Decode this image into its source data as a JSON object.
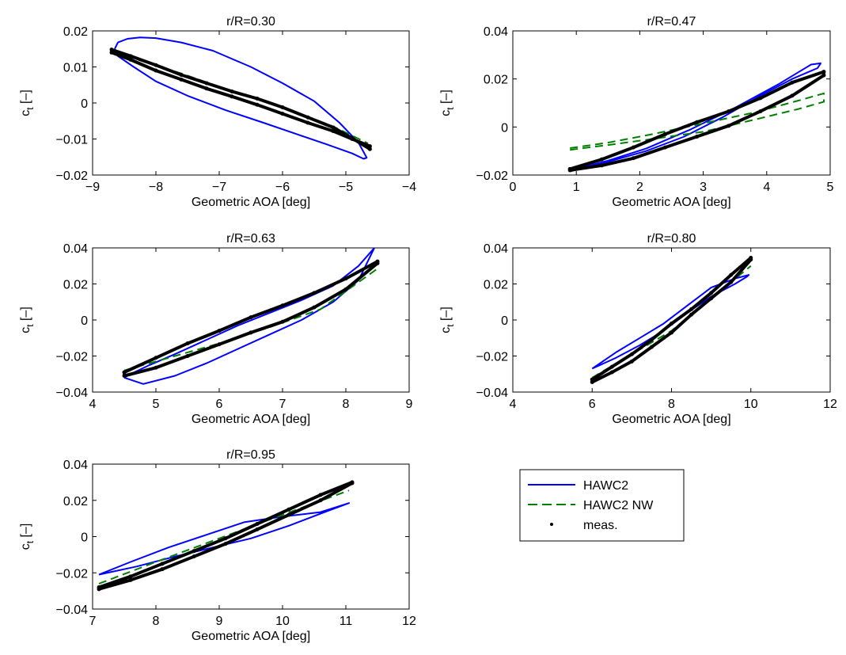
{
  "chart_data": [
    {
      "type": "line",
      "title": "r/R=0.30",
      "xlabel": "Geometric AOA [deg]",
      "ylabel_main": "c",
      "ylabel_sub": "t",
      "ylabel_unit": "[–]",
      "xlim": [
        -9,
        -4
      ],
      "ylim": [
        -0.02,
        0.02
      ],
      "xticks": [
        -9,
        -8,
        -7,
        -6,
        -5,
        -4
      ],
      "xtick_labels": [
        "−9",
        "−8",
        "−7",
        "−6",
        "−5",
        "−4"
      ],
      "yticks": [
        -0.02,
        -0.01,
        0,
        0.01,
        0.02
      ],
      "ytick_labels": [
        "−0.02",
        "−0.01",
        "0",
        "0.01",
        "0.02"
      ],
      "grid": false,
      "series": [
        {
          "name": "HAWC2",
          "style": "solid",
          "color": "#0000ff",
          "x": [
            -8.65,
            -8.6,
            -8.45,
            -8.25,
            -8.0,
            -7.6,
            -7.1,
            -6.5,
            -6.0,
            -5.5,
            -5.1,
            -4.8,
            -4.67,
            -4.72,
            -4.9,
            -5.3,
            -5.8,
            -6.3,
            -6.9,
            -7.5,
            -8.0,
            -8.35,
            -8.6,
            -8.65
          ],
          "y": [
            0.015,
            0.0168,
            0.0178,
            0.0182,
            0.018,
            0.0168,
            0.0145,
            0.01,
            0.0055,
            0.0005,
            -0.0055,
            -0.011,
            -0.0152,
            -0.0155,
            -0.014,
            -0.0115,
            -0.0085,
            -0.0055,
            -0.002,
            0.002,
            0.006,
            0.01,
            0.013,
            0.015
          ]
        },
        {
          "name": "HAWC2 NW",
          "style": "dashed",
          "color": "#008000",
          "x": [
            -8.65,
            -8.2,
            -7.6,
            -7.0,
            -6.4,
            -5.8,
            -5.2,
            -4.65
          ],
          "y": [
            0.0142,
            0.0115,
            0.0082,
            0.0045,
            0.0012,
            -0.0025,
            -0.0065,
            -0.0112
          ]
        },
        {
          "name": "meas.",
          "style": "markers",
          "color": "#000000",
          "x": [
            -8.7,
            -8.4,
            -8.0,
            -7.6,
            -7.2,
            -6.8,
            -6.4,
            -6.0,
            -5.6,
            -5.2,
            -4.9,
            -4.62,
            -4.62,
            -4.9,
            -5.2,
            -5.6,
            -6.0,
            -6.4,
            -6.8,
            -7.2,
            -7.6,
            -8.0,
            -8.4,
            -8.7
          ],
          "y": [
            0.0148,
            0.013,
            0.0105,
            0.0078,
            0.0055,
            0.0032,
            0.0012,
            -0.0012,
            -0.004,
            -0.0068,
            -0.0098,
            -0.0128,
            -0.012,
            -0.01,
            -0.0078,
            -0.0055,
            -0.003,
            -0.0005,
            0.0018,
            0.004,
            0.0065,
            0.009,
            0.012,
            0.014
          ]
        }
      ]
    },
    {
      "type": "line",
      "title": "r/R=0.47",
      "xlabel": "Geometric AOA [deg]",
      "ylabel_main": "c",
      "ylabel_sub": "t",
      "ylabel_unit": "[–]",
      "xlim": [
        0,
        5
      ],
      "ylim": [
        -0.02,
        0.04
      ],
      "xticks": [
        0,
        1,
        2,
        3,
        4,
        5
      ],
      "xtick_labels": [
        "0",
        "1",
        "2",
        "3",
        "4",
        "5"
      ],
      "yticks": [
        -0.02,
        0,
        0.02,
        0.04
      ],
      "ytick_labels": [
        "−0.02",
        "0",
        "0.02",
        "0.04"
      ],
      "grid": false,
      "series": [
        {
          "name": "HAWC2",
          "style": "solid",
          "color": "#0000ff",
          "x": [
            0.9,
            1.5,
            2.1,
            2.7,
            3.3,
            3.9,
            4.4,
            4.8,
            4.85,
            4.7,
            4.2,
            3.5,
            2.8,
            2.1,
            1.5,
            1.0,
            0.9
          ],
          "y": [
            -0.0185,
            -0.0145,
            -0.01,
            -0.004,
            0.004,
            0.013,
            0.02,
            0.0245,
            0.0265,
            0.026,
            0.018,
            0.008,
            -0.001,
            -0.009,
            -0.014,
            -0.0175,
            -0.0185
          ]
        },
        {
          "name": "HAWC2 NW",
          "style": "dashed",
          "color": "#008000",
          "x": [
            0.9,
            1.5,
            2.2,
            3.0,
            3.8,
            4.5,
            4.9,
            4.9,
            4.5,
            3.8,
            3.0,
            2.2,
            1.5,
            0.9
          ],
          "y": [
            -0.0095,
            -0.0075,
            -0.005,
            -0.002,
            0.003,
            0.0075,
            0.0105,
            0.014,
            0.011,
            0.006,
            0.0015,
            -0.003,
            -0.0065,
            -0.0088
          ]
        },
        {
          "name": "meas.",
          "style": "markers",
          "color": "#000000",
          "x": [
            0.9,
            1.4,
            1.9,
            2.4,
            2.9,
            3.4,
            3.9,
            4.4,
            4.9,
            4.9,
            4.4,
            3.9,
            3.4,
            2.9,
            2.4,
            1.9,
            1.4,
            0.9
          ],
          "y": [
            -0.018,
            -0.016,
            -0.013,
            -0.0085,
            -0.004,
            0.0005,
            0.0065,
            0.013,
            0.0215,
            0.023,
            0.0185,
            0.012,
            0.0065,
            0.002,
            -0.003,
            -0.0085,
            -0.0135,
            -0.0175
          ]
        }
      ]
    },
    {
      "type": "line",
      "title": "r/R=0.63",
      "xlabel": "Geometric AOA [deg]",
      "ylabel_main": "c",
      "ylabel_sub": "t",
      "ylabel_unit": "[–]",
      "xlim": [
        4,
        9
      ],
      "ylim": [
        -0.04,
        0.04
      ],
      "xticks": [
        4,
        5,
        6,
        7,
        8,
        9
      ],
      "xtick_labels": [
        "4",
        "5",
        "6",
        "7",
        "8",
        "9"
      ],
      "yticks": [
        -0.04,
        -0.02,
        0,
        0.02,
        0.04
      ],
      "ytick_labels": [
        "−0.04",
        "−0.02",
        "0",
        "0.02",
        "0.04"
      ],
      "grid": false,
      "series": [
        {
          "name": "HAWC2",
          "style": "solid",
          "color": "#0000ff",
          "x": [
            4.5,
            4.8,
            5.3,
            5.8,
            6.3,
            6.8,
            7.3,
            7.8,
            8.2,
            8.45,
            8.2,
            7.8,
            7.3,
            6.8,
            6.3,
            5.8,
            5.3,
            4.9,
            4.6,
            4.5
          ],
          "y": [
            -0.032,
            -0.0355,
            -0.031,
            -0.024,
            -0.016,
            -0.008,
            0.0,
            0.01,
            0.022,
            0.04,
            0.03,
            0.019,
            0.011,
            0.004,
            -0.003,
            -0.011,
            -0.019,
            -0.025,
            -0.03,
            -0.032
          ]
        },
        {
          "name": "HAWC2 NW",
          "style": "dashed",
          "color": "#008000",
          "x": [
            4.5,
            5.2,
            6.0,
            6.8,
            7.6,
            8.5
          ],
          "y": [
            -0.028,
            -0.021,
            -0.013,
            -0.004,
            0.006,
            0.0285
          ]
        },
        {
          "name": "meas.",
          "style": "markers",
          "color": "#000000",
          "x": [
            4.5,
            5.0,
            5.5,
            6.0,
            6.5,
            7.0,
            7.5,
            8.0,
            8.5,
            8.5,
            8.0,
            7.5,
            7.0,
            6.5,
            6.0,
            5.5,
            5.0,
            4.5
          ],
          "y": [
            -0.031,
            -0.0265,
            -0.02,
            -0.0135,
            -0.007,
            -0.001,
            0.007,
            0.017,
            0.0315,
            0.0325,
            0.023,
            0.015,
            0.008,
            0.0015,
            -0.006,
            -0.013,
            -0.021,
            -0.029
          ]
        }
      ]
    },
    {
      "type": "line",
      "title": "r/R=0.80",
      "xlabel": "Geometric AOA [deg]",
      "ylabel_main": "c",
      "ylabel_sub": "t",
      "ylabel_unit": "[–]",
      "xlim": [
        4,
        12
      ],
      "ylim": [
        -0.04,
        0.04
      ],
      "xticks": [
        4,
        6,
        8,
        10,
        12
      ],
      "xtick_labels": [
        "4",
        "6",
        "8",
        "10",
        "12"
      ],
      "yticks": [
        -0.04,
        -0.02,
        0,
        0.02,
        0.04
      ],
      "ytick_labels": [
        "−0.04",
        "−0.02",
        "0",
        "0.02",
        "0.04"
      ],
      "grid": false,
      "series": [
        {
          "name": "HAWC2",
          "style": "solid",
          "color": "#0000ff",
          "x": [
            6.0,
            6.6,
            7.2,
            7.8,
            8.4,
            9.0,
            9.6,
            9.9,
            9.95,
            9.6,
            9.0,
            8.4,
            7.8,
            7.2,
            6.6,
            6.0
          ],
          "y": [
            -0.027,
            -0.021,
            -0.014,
            -0.006,
            0.004,
            0.013,
            0.02,
            0.024,
            0.025,
            0.023,
            0.018,
            0.008,
            -0.002,
            -0.01,
            -0.018,
            -0.027
          ]
        },
        {
          "name": "HAWC2 NW",
          "style": "dashed",
          "color": "#008000",
          "x": [
            6.0,
            7.0,
            8.0,
            9.0,
            10.0
          ],
          "y": [
            -0.032,
            -0.019,
            -0.006,
            0.012,
            0.03
          ]
        },
        {
          "name": "meas.",
          "style": "markers",
          "color": "#000000",
          "x": [
            6.0,
            6.5,
            7.0,
            7.5,
            8.0,
            8.5,
            9.0,
            9.5,
            10.0,
            10.0,
            9.5,
            9.0,
            8.5,
            8.0,
            7.5,
            7.0,
            6.5,
            6.0
          ],
          "y": [
            -0.0345,
            -0.029,
            -0.023,
            -0.015,
            -0.007,
            0.003,
            0.012,
            0.021,
            0.0335,
            0.0345,
            0.025,
            0.015,
            0.006,
            -0.002,
            -0.011,
            -0.019,
            -0.026,
            -0.033
          ]
        }
      ]
    },
    {
      "type": "line",
      "title": "r/R=0.95",
      "xlabel": "Geometric AOA [deg]",
      "ylabel_main": "c",
      "ylabel_sub": "t",
      "ylabel_unit": "[–]",
      "xlim": [
        7,
        12
      ],
      "ylim": [
        -0.04,
        0.04
      ],
      "xticks": [
        7,
        8,
        9,
        10,
        11,
        12
      ],
      "xtick_labels": [
        "7",
        "8",
        "9",
        "10",
        "11",
        "12"
      ],
      "yticks": [
        -0.04,
        -0.02,
        0,
        0.02,
        0.04
      ],
      "ytick_labels": [
        "−0.04",
        "−0.02",
        "0",
        "0.02",
        "0.04"
      ],
      "grid": false,
      "series": [
        {
          "name": "HAWC2",
          "style": "solid",
          "color": "#0000ff",
          "x": [
            7.1,
            7.6,
            8.2,
            8.8,
            9.4,
            10.0,
            10.6,
            11.05,
            10.7,
            10.1,
            9.5,
            8.9,
            8.3,
            7.7,
            7.1
          ],
          "y": [
            -0.021,
            -0.014,
            -0.006,
            0.001,
            0.008,
            0.011,
            0.0135,
            0.0185,
            0.014,
            0.006,
            -0.001,
            -0.006,
            -0.011,
            -0.0165,
            -0.021
          ]
        },
        {
          "name": "HAWC2 NW",
          "style": "dashed",
          "color": "#008000",
          "x": [
            7.1,
            8.0,
            9.0,
            10.0,
            11.05
          ],
          "y": [
            -0.026,
            -0.014,
            -0.001,
            0.012,
            0.0255
          ]
        },
        {
          "name": "meas.",
          "style": "markers",
          "color": "#000000",
          "x": [
            7.1,
            7.6,
            8.1,
            8.6,
            9.1,
            9.6,
            10.1,
            10.6,
            11.1,
            11.1,
            10.6,
            10.1,
            9.6,
            9.1,
            8.6,
            8.1,
            7.6,
            7.1
          ],
          "y": [
            -0.029,
            -0.024,
            -0.018,
            -0.011,
            -0.004,
            0.004,
            0.012,
            0.02,
            0.0295,
            0.03,
            0.023,
            0.015,
            0.007,
            -0.001,
            -0.008,
            -0.015,
            -0.022,
            -0.028
          ]
        }
      ]
    }
  ],
  "legend": {
    "placement": "right of bottom-left panel",
    "entries": [
      {
        "label": "HAWC2",
        "style": "solid",
        "color": "#0000ff"
      },
      {
        "label": "HAWC2 NW",
        "style": "dashed",
        "color": "#008000"
      },
      {
        "label": "meas.",
        "style": "markers",
        "color": "#000000"
      }
    ]
  }
}
